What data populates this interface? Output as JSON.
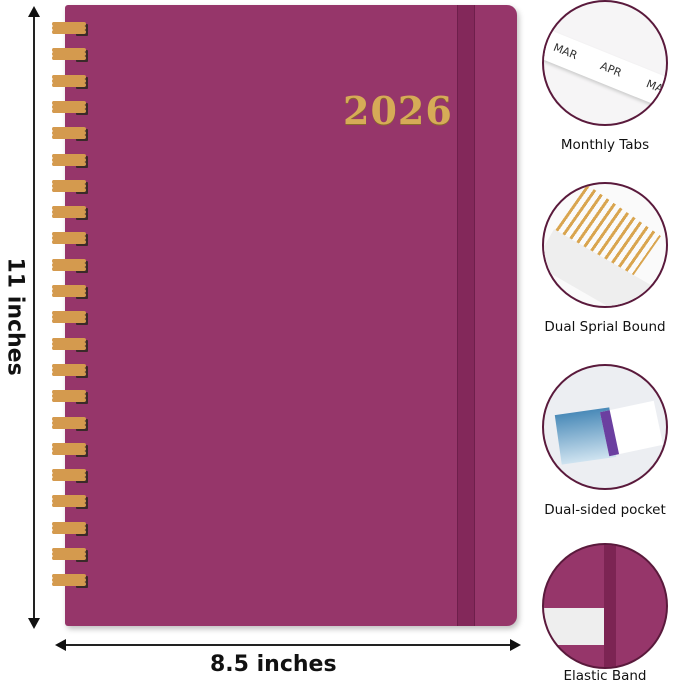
{
  "cover": {
    "year": "2026",
    "color": "#96366a",
    "foil_color": "#d6ab57"
  },
  "dimensions": {
    "height": "11 inches",
    "width": "8.5 inches"
  },
  "features": [
    {
      "label": "Monthly Tabs",
      "tabs": [
        "MAR",
        "APR",
        "MAY"
      ]
    },
    {
      "label": "Dual Sprial Bound"
    },
    {
      "label": "Dual-sided pocket"
    },
    {
      "label": "Elastic Band"
    }
  ]
}
